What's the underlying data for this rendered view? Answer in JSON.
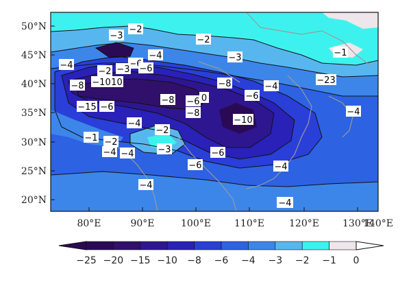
{
  "map": {
    "lon_ticks": [
      "80°E",
      "90°E",
      "100°E",
      "110°E",
      "120°E",
      "130°E",
      "140°E"
    ],
    "lat_ticks": [
      "50°N",
      "45°N",
      "40°N",
      "35°N",
      "30°N",
      "25°N",
      "20°N"
    ],
    "contour_labels": [
      "−3",
      "−2",
      "−2",
      "−4",
      "−6",
      "−6",
      "−3",
      "−2",
      "−3",
      "−1",
      "−4",
      "−8",
      "−10",
      "−15",
      "−6",
      "−8",
      "−6",
      "−10",
      "−8",
      "−8",
      "0",
      "−6",
      "−4",
      "−23",
      "−4",
      "−4",
      "−2",
      "−10",
      "−1",
      "−2",
      "−4",
      "−3",
      "−4",
      "−6",
      "−6",
      "−4",
      "−4"
    ]
  },
  "colorbar": {
    "levels": [
      "−25",
      "−20",
      "−15",
      "−10",
      "−8",
      "−6",
      "−4",
      "−3",
      "−2",
      "−1",
      "0"
    ],
    "colors": [
      "#2a0a55",
      "#30106b",
      "#2e1690",
      "#2a21b8",
      "#2a3fd8",
      "#2d62e2",
      "#3c86ea",
      "#58b6ef",
      "#3df2ee",
      "#eee6ea"
    ]
  }
}
